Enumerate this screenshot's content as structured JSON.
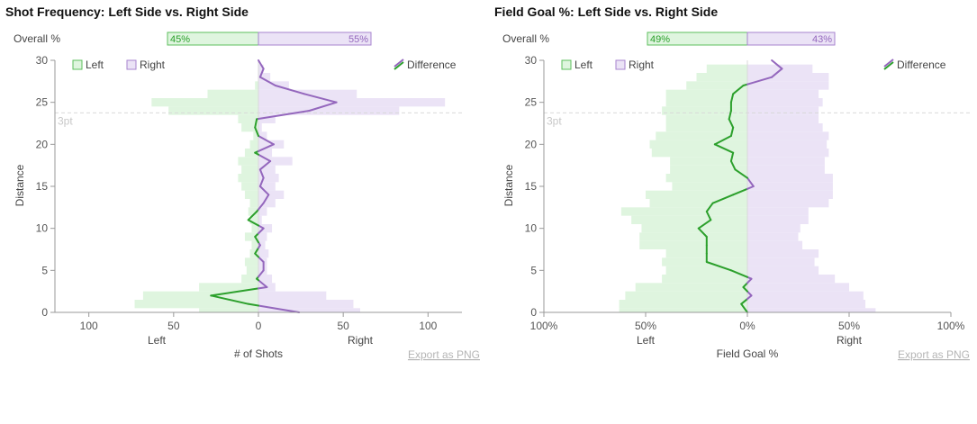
{
  "colors": {
    "left_fill": "#dff5df",
    "left_stroke": "#5cbf5c",
    "left_line": "#2ca02c",
    "left_text": "#2ca02c",
    "right_fill": "#ebe3f6",
    "right_stroke": "#a783cf",
    "right_line": "#9467bd",
    "right_text": "#9467bd",
    "axis": "#999999",
    "ref_line": "#d9d9d9"
  },
  "export_label": "Export as PNG",
  "chart_data": [
    {
      "type": "bar",
      "title": "Shot Frequency: Left Side vs. Right Side",
      "overall_label": "Overall %",
      "overall_left": "45%",
      "overall_right": "55%",
      "overall_left_share": 0.45,
      "overall_right_share": 0.55,
      "ylabel": "Distance",
      "xlabel": "# of Shots",
      "side_left_label": "Left",
      "side_right_label": "Right",
      "legend": {
        "left": "Left",
        "right": "Right",
        "difference": "Difference"
      },
      "three_pt_label": "3pt",
      "three_pt_distance": 23.75,
      "xlim": [
        -120,
        120
      ],
      "ylim": [
        0,
        30
      ],
      "x_ticks": [
        -100,
        -50,
        0,
        50,
        100
      ],
      "x_tick_labels": [
        "100",
        "50",
        "0",
        "50",
        "100"
      ],
      "y_ticks": [
        0,
        5,
        10,
        15,
        20,
        25,
        30
      ],
      "y_tick_labels": [
        "0",
        "5",
        "10",
        "15",
        "20",
        "25",
        "30"
      ],
      "distance": [
        0,
        1,
        2,
        3,
        4,
        5,
        6,
        7,
        8,
        9,
        10,
        11,
        12,
        13,
        14,
        15,
        16,
        17,
        18,
        19,
        20,
        21,
        22,
        23,
        24,
        25,
        26,
        27,
        28,
        29,
        30
      ],
      "left": [
        35,
        73,
        68,
        35,
        10,
        7,
        8,
        5,
        4,
        8,
        4,
        5,
        6,
        5,
        8,
        10,
        12,
        10,
        12,
        8,
        5,
        3,
        10,
        12,
        53,
        63,
        30,
        2,
        0,
        0,
        0
      ],
      "right": [
        60,
        56,
        40,
        10,
        8,
        5,
        5,
        6,
        4,
        5,
        8,
        2,
        5,
        10,
        15,
        10,
        12,
        10,
        20,
        8,
        15,
        5,
        2,
        10,
        83,
        110,
        58,
        18,
        7,
        3,
        0
      ],
      "difference": [
        24,
        -6,
        -28,
        5,
        -1,
        3,
        3,
        -2,
        1,
        -2,
        3,
        -6,
        -1,
        3,
        6,
        1,
        3,
        1,
        7,
        -2,
        9,
        0,
        -2,
        -1,
        30,
        46,
        27,
        10,
        1,
        3,
        0
      ]
    },
    {
      "type": "bar",
      "title": "Field Goal %: Left Side vs. Right Side",
      "overall_label": "Overall %",
      "overall_left": "49%",
      "overall_right": "43%",
      "overall_left_share": 0.49,
      "overall_right_share": 0.43,
      "ylabel": "Distance",
      "xlabel": "Field Goal %",
      "side_left_label": "Left",
      "side_right_label": "Right",
      "legend": {
        "left": "Left",
        "right": "Right",
        "difference": "Difference"
      },
      "three_pt_label": "3pt",
      "three_pt_distance": 23.75,
      "xlim": [
        -100,
        100
      ],
      "ylim": [
        0,
        30
      ],
      "x_ticks": [
        -100,
        -50,
        0,
        50,
        100
      ],
      "x_tick_labels": [
        "100%",
        "50%",
        "0%",
        "50%",
        "100%"
      ],
      "y_ticks": [
        0,
        5,
        10,
        15,
        20,
        25,
        30
      ],
      "y_tick_labels": [
        "0",
        "5",
        "10",
        "15",
        "20",
        "25",
        "30"
      ],
      "distance": [
        0,
        1,
        2,
        3,
        4,
        5,
        6,
        7,
        8,
        9,
        10,
        11,
        12,
        13,
        14,
        15,
        16,
        17,
        18,
        19,
        20,
        21,
        22,
        23,
        24,
        25,
        26,
        27,
        28,
        29,
        30
      ],
      "left": [
        63,
        63,
        60,
        55,
        42,
        40,
        42,
        40,
        53,
        53,
        52,
        57,
        62,
        48,
        50,
        37,
        40,
        38,
        38,
        47,
        48,
        45,
        40,
        40,
        42,
        40,
        40,
        30,
        25,
        20,
        0
      ],
      "right": [
        63,
        58,
        57,
        50,
        43,
        35,
        33,
        35,
        27,
        25,
        26,
        30,
        30,
        40,
        42,
        42,
        42,
        38,
        38,
        40,
        39,
        40,
        37,
        35,
        35,
        37,
        35,
        40,
        40,
        32,
        0
      ],
      "difference": [
        0,
        -3,
        2,
        -2,
        2,
        -8,
        -20,
        -20,
        -20,
        -20,
        -24,
        -18,
        -20,
        -17,
        -7,
        3,
        0,
        -6,
        -8,
        -7,
        -16,
        -8,
        -7,
        -9,
        -8,
        -8,
        -7,
        -2,
        12,
        17,
        12
      ]
    }
  ]
}
